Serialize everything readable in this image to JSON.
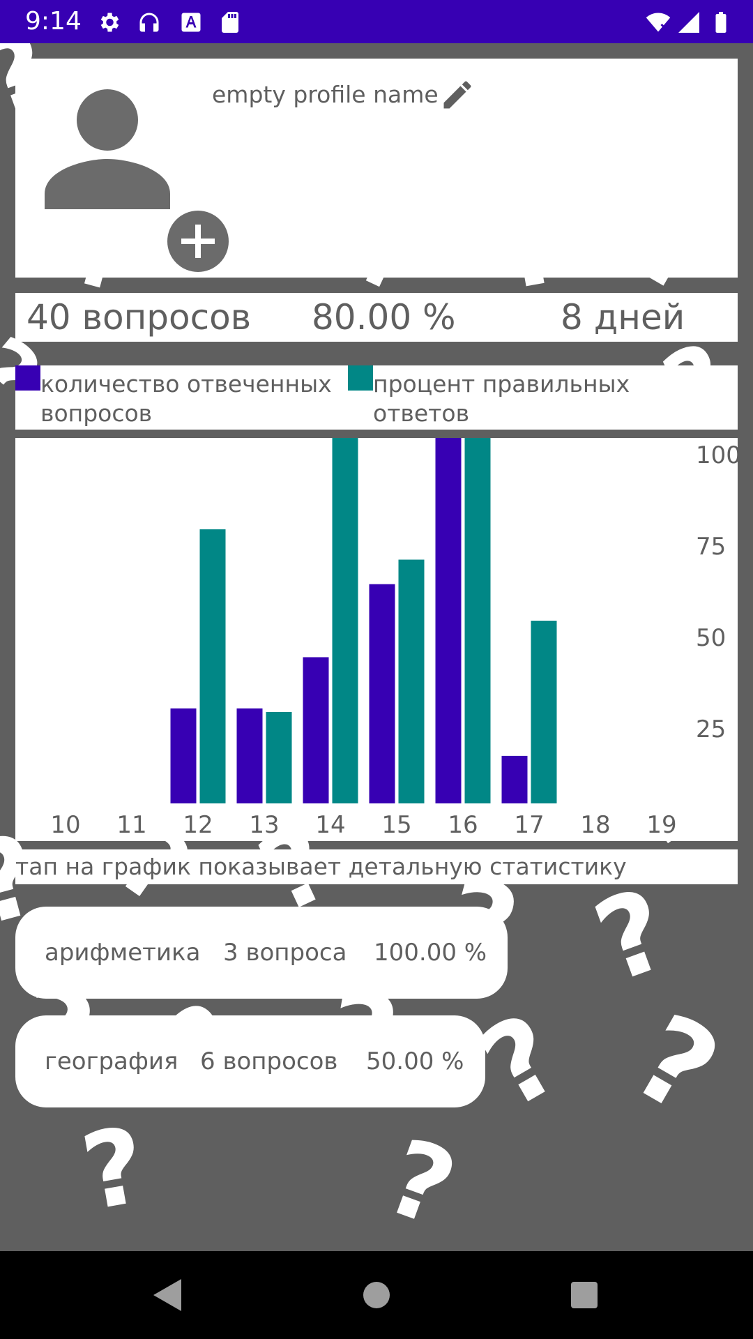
{
  "status_bar": {
    "time": "9:14",
    "color": "#3700b3",
    "icons": [
      "settings-icon",
      "headphones-icon",
      "font-icon",
      "sd-card-icon",
      "wifi-icon",
      "signal-icon",
      "battery-icon"
    ]
  },
  "profile": {
    "name": "empty profile name",
    "avatar_icon": "person-icon",
    "add_photo_icon": "add-circle-icon",
    "edit_icon": "pencil-icon"
  },
  "stats": {
    "questions": "40 вопросов",
    "percent": "80.00 %",
    "days": "8 дней"
  },
  "legend": {
    "answered_label": "количество отвеченных вопросов",
    "correct_label": "процент правильных ответов"
  },
  "chart_hint": "тап на график показывает детальную статистику",
  "categories": [
    {
      "name": "арифметика",
      "count": "3 вопроса",
      "percent": "100.00 %"
    },
    {
      "name": "география",
      "count": "6 вопросов",
      "percent": "50.00 %"
    }
  ],
  "colors": {
    "answered": "#3700b3",
    "correct": "#018786",
    "text": "#5f5f5f",
    "background": "#5f5f5f"
  },
  "chart_data": {
    "type": "bar",
    "categories": [
      "10",
      "11",
      "12",
      "13",
      "14",
      "15",
      "16",
      "17",
      "18",
      "19"
    ],
    "series": [
      {
        "name": "количество отвеченных вопросов",
        "color": "#3700b3",
        "values": [
          0,
          0,
          26,
          26,
          40,
          60,
          100,
          13,
          0,
          0
        ]
      },
      {
        "name": "процент правильных ответов",
        "color": "#018786",
        "values": [
          0,
          0,
          75,
          25,
          100,
          66.7,
          100,
          50,
          0,
          0
        ]
      }
    ],
    "y_ticks": [
      25,
      50,
      75,
      100
    ],
    "ylim": [
      0,
      100
    ],
    "grid": false
  },
  "nav": {
    "back_icon": "back-triangle-icon",
    "home_icon": "home-circle-icon",
    "recents_icon": "recents-square-icon"
  }
}
